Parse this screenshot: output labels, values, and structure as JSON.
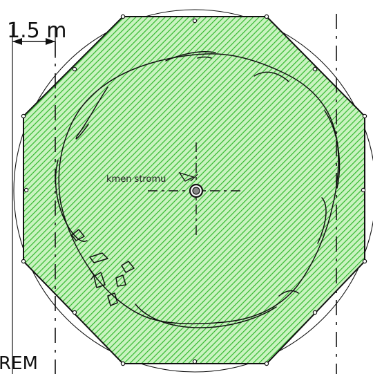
{
  "dimension": {
    "label": "1.5 m"
  },
  "trunk": {
    "label": "kmen stromu"
  },
  "edge_label": {
    "text": "REM"
  },
  "colors": {
    "hatch_fill": "#c9f3c0",
    "hatch_line": "#33b82e",
    "outline": "#111111"
  }
}
